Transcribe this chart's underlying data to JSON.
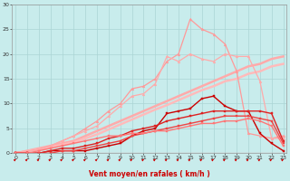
{
  "title": "",
  "xlabel": "Vent moyen/en rafales ( km/h )",
  "bg_color": "#c8ecec",
  "grid_color": "#aad4d4",
  "x": [
    0,
    1,
    2,
    3,
    4,
    5,
    6,
    7,
    8,
    9,
    10,
    11,
    12,
    13,
    14,
    15,
    16,
    17,
    18,
    19,
    20,
    21,
    22,
    23
  ],
  "series": [
    {
      "y": [
        0.0,
        0.5,
        1.0,
        1.5,
        2.0,
        2.5,
        3.5,
        4.5,
        5.5,
        6.5,
        7.5,
        8.5,
        9.5,
        10.5,
        11.5,
        12.5,
        13.5,
        14.5,
        15.5,
        16.5,
        17.5,
        18.0,
        19.0,
        19.5
      ],
      "color": "#ffaaaa",
      "lw": 1.8,
      "marker": null,
      "linestyle": "-"
    },
    {
      "y": [
        0.0,
        0.4,
        0.8,
        1.2,
        1.7,
        2.2,
        3.0,
        3.8,
        4.8,
        5.8,
        6.8,
        7.8,
        8.8,
        9.7,
        10.7,
        11.7,
        12.7,
        13.5,
        14.5,
        15.0,
        16.0,
        16.5,
        17.5,
        18.0
      ],
      "color": "#ffbbbb",
      "lw": 1.8,
      "marker": null,
      "linestyle": "-"
    },
    {
      "y": [
        0.2,
        0.4,
        0.8,
        1.5,
        2.5,
        3.5,
        5.0,
        6.5,
        8.5,
        10.0,
        13.0,
        13.5,
        15.0,
        18.5,
        20.0,
        27.0,
        25.0,
        24.0,
        22.0,
        16.5,
        4.0,
        3.5,
        3.0,
        3.5
      ],
      "color": "#ff9999",
      "lw": 0.9,
      "marker": "^",
      "markersize": 2.0,
      "linestyle": "-"
    },
    {
      "y": [
        0.2,
        0.4,
        0.8,
        1.5,
        2.5,
        3.5,
        4.5,
        5.5,
        7.5,
        9.5,
        11.5,
        12.0,
        14.0,
        19.5,
        18.5,
        20.0,
        19.0,
        18.5,
        20.0,
        19.5,
        19.5,
        14.5,
        3.0,
        3.0
      ],
      "color": "#ffaaaa",
      "lw": 0.9,
      "marker": "^",
      "markersize": 2.0,
      "linestyle": "-"
    },
    {
      "y": [
        0.0,
        0.0,
        0.0,
        0.5,
        0.5,
        0.5,
        0.5,
        1.0,
        1.5,
        2.0,
        3.5,
        4.5,
        5.0,
        8.0,
        8.5,
        9.0,
        11.0,
        11.5,
        9.5,
        8.5,
        8.5,
        4.0,
        2.0,
        0.5
      ],
      "color": "#cc0000",
      "lw": 1.0,
      "marker": "s",
      "markersize": 2.0,
      "linestyle": "-"
    },
    {
      "y": [
        0.0,
        0.0,
        0.0,
        0.5,
        1.0,
        1.0,
        1.5,
        2.0,
        3.0,
        3.5,
        4.5,
        5.0,
        5.5,
        6.5,
        7.0,
        7.5,
        8.0,
        8.5,
        8.5,
        8.5,
        8.5,
        8.5,
        8.0,
        2.5
      ],
      "color": "#dd2222",
      "lw": 1.0,
      "marker": "s",
      "markersize": 2.0,
      "linestyle": "-"
    },
    {
      "y": [
        0.0,
        0.0,
        0.0,
        0.0,
        0.5,
        0.5,
        1.0,
        1.5,
        2.0,
        2.5,
        3.5,
        4.0,
        4.5,
        5.0,
        5.5,
        6.0,
        6.5,
        7.0,
        7.5,
        7.5,
        7.5,
        7.0,
        6.5,
        2.0
      ],
      "color": "#ee4444",
      "lw": 1.0,
      "marker": "s",
      "markersize": 2.0,
      "linestyle": "-"
    },
    {
      "y": [
        0.0,
        0.0,
        0.5,
        1.0,
        1.5,
        2.0,
        2.5,
        3.0,
        3.5,
        3.5,
        4.0,
        4.0,
        4.5,
        4.5,
        5.0,
        5.5,
        6.0,
        6.0,
        6.5,
        6.5,
        7.0,
        6.5,
        5.5,
        1.5
      ],
      "color": "#ff7777",
      "lw": 1.0,
      "marker": "s",
      "markersize": 2.0,
      "linestyle": "-"
    }
  ],
  "xlim": [
    -0.3,
    23.3
  ],
  "ylim": [
    0,
    30
  ],
  "yticks": [
    0,
    5,
    10,
    15,
    20,
    25,
    30
  ],
  "xticks": [
    0,
    1,
    2,
    3,
    4,
    5,
    6,
    7,
    8,
    9,
    10,
    11,
    12,
    13,
    14,
    15,
    16,
    17,
    18,
    19,
    20,
    21,
    22,
    23
  ]
}
